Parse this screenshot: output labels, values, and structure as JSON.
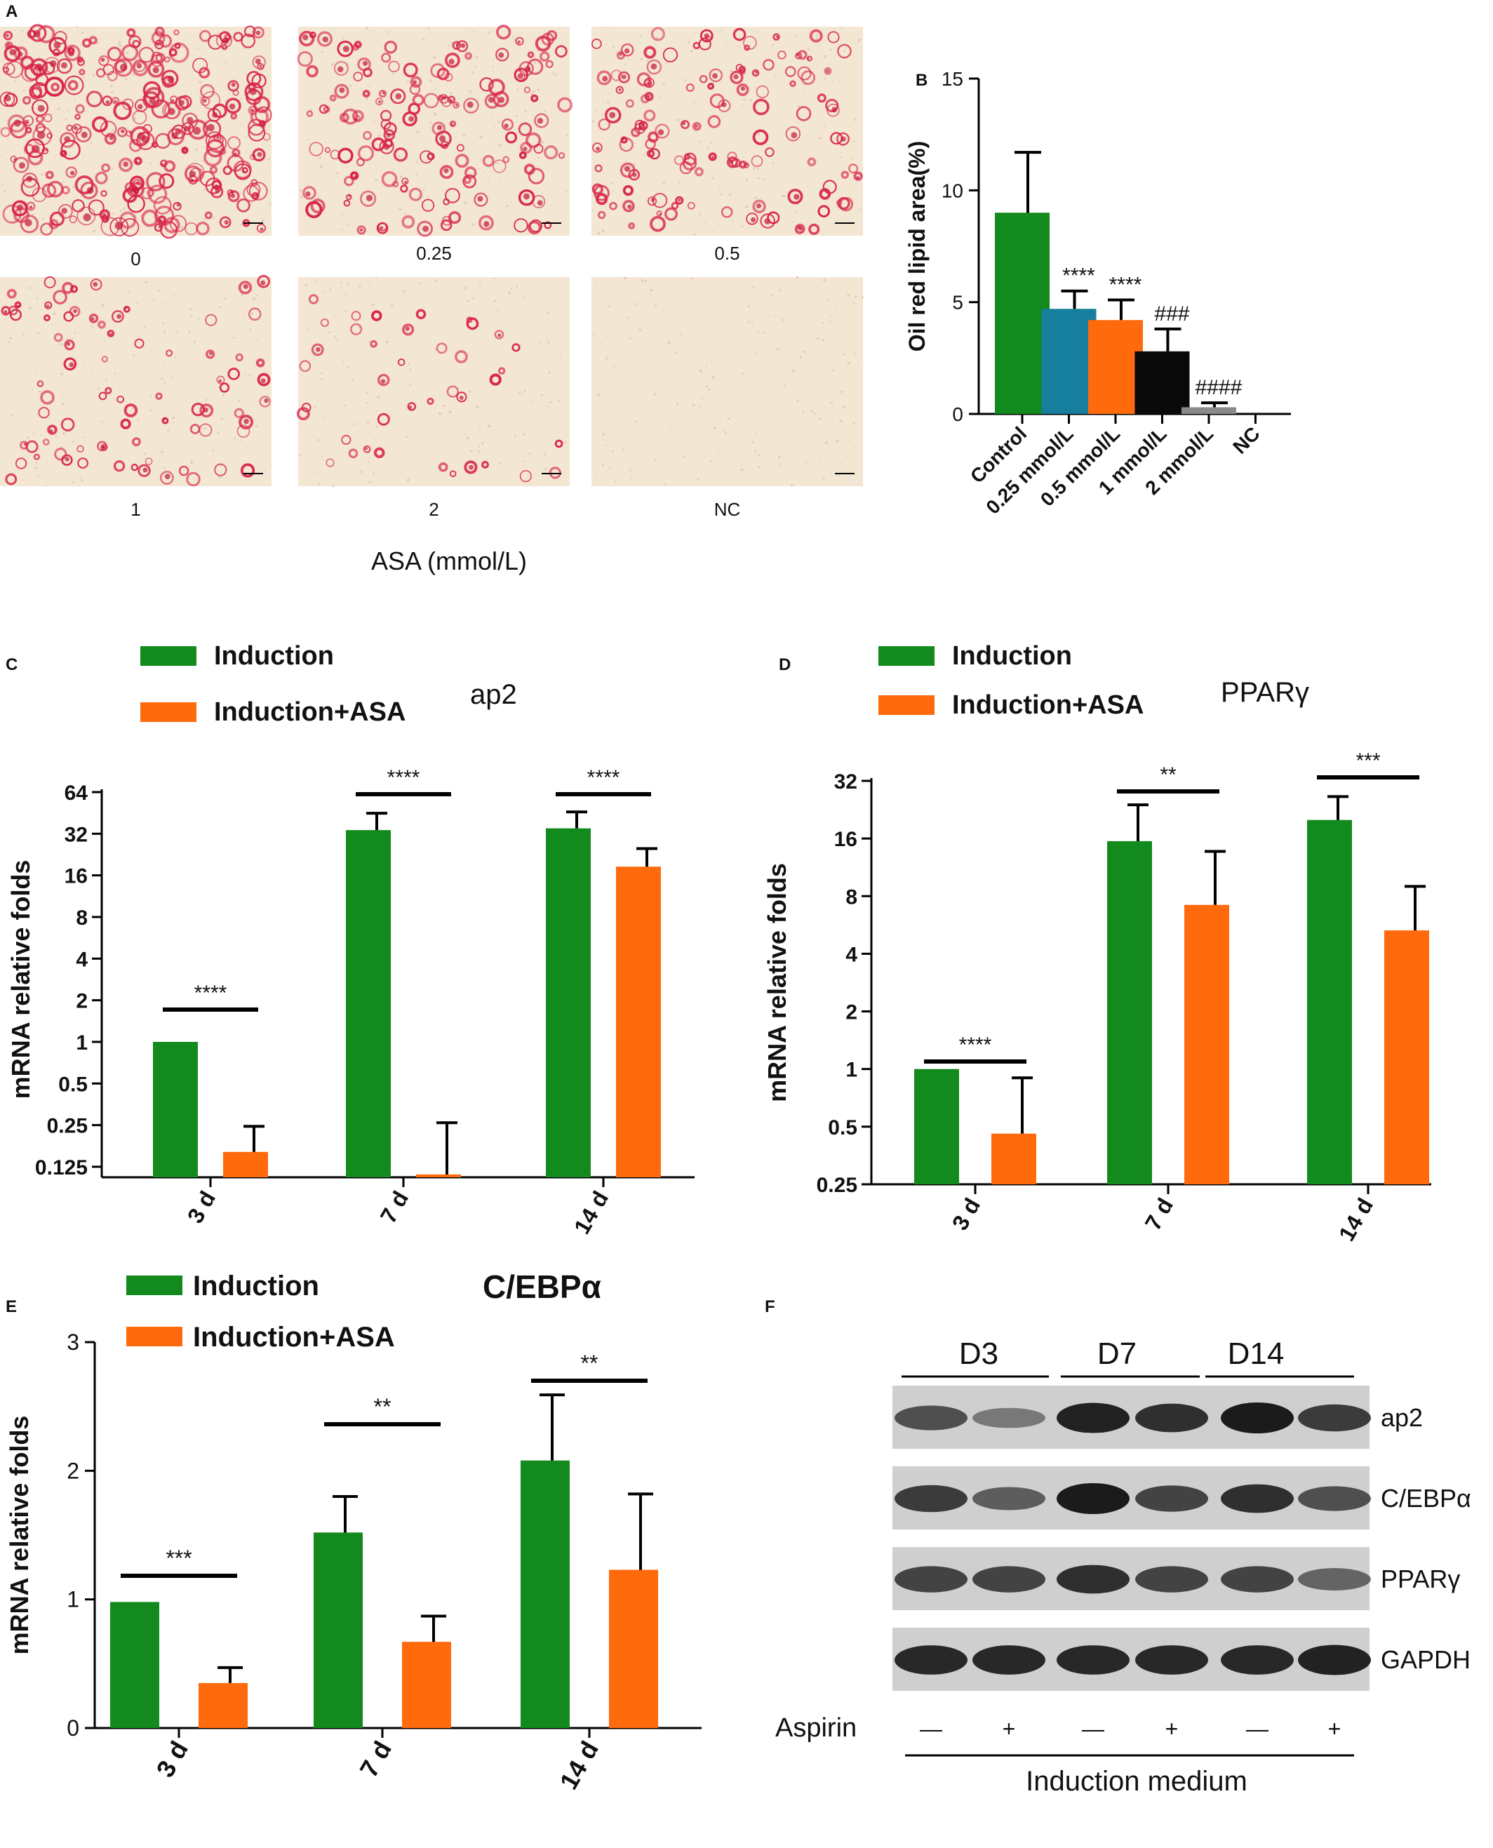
{
  "panel_letters": {
    "a": "A",
    "b": "B",
    "c": "C",
    "d": "D",
    "e": "E",
    "f": "F"
  },
  "micrographs": {
    "xlabel": "ASA (mmol/L)",
    "panels": [
      {
        "label": "0",
        "density": 1.0
      },
      {
        "label": "0.25",
        "density": 0.55
      },
      {
        "label": "0.5",
        "density": 0.5
      },
      {
        "label": "1",
        "density": 0.3
      },
      {
        "label": "2",
        "density": 0.15
      },
      {
        "label": "NC",
        "density": 0.0
      }
    ]
  },
  "colors": {
    "green": "#138a1e",
    "orange": "#ff6a0d",
    "teal": "#167f9e",
    "black": "#0a0a0a",
    "gray": "#8a8a8a"
  },
  "chart_data": [
    {
      "id": "B",
      "type": "bar",
      "title": "",
      "ylabel": "Oil red lipid area(%)",
      "ylim": [
        0,
        15
      ],
      "yticks": [
        "0",
        "5",
        "10",
        "15"
      ],
      "categories": [
        "Control",
        "0.25 mmol/L",
        "0.5 mmol/L",
        "1 mmol/L",
        "2 mmol/L",
        "NC"
      ],
      "values": [
        9.0,
        4.7,
        4.2,
        2.8,
        0.3,
        0.0
      ],
      "errors": [
        2.7,
        0.8,
        0.9,
        1.0,
        0.2,
        0.0
      ],
      "annotations": [
        "",
        "****",
        "****",
        "###",
        "####",
        ""
      ],
      "bar_colors": [
        "#138a1e",
        "#167f9e",
        "#ff6a0d",
        "#0a0a0a",
        "#8a8a8a",
        "#ffffff"
      ]
    },
    {
      "id": "C",
      "type": "bar",
      "title": "ap2",
      "ylabel": "mRNA relative folds",
      "yscale": "log2",
      "yticks": [
        "0.125",
        "0.25",
        "0.5",
        "1",
        "2",
        "4",
        "8",
        "16",
        "32",
        "64"
      ],
      "categories": [
        "3 d",
        "7 d",
        "14 d"
      ],
      "series": [
        {
          "name": "Induction",
          "values": [
            1.0,
            34,
            35
          ],
          "errors": [
            0,
            11,
            11
          ]
        },
        {
          "name": "Induction+ASA",
          "values": [
            0.16,
            0.11,
            18.5
          ],
          "errors": [
            0.085,
            0.15,
            6.5
          ]
        }
      ],
      "significance": [
        "****",
        "****",
        "****"
      ]
    },
    {
      "id": "D",
      "type": "bar",
      "title": "PPARγ",
      "ylabel": "mRNA relative folds",
      "yscale": "log2",
      "yticks": [
        "0.25",
        "0.5",
        "1",
        "2",
        "4",
        "8",
        "16",
        "32"
      ],
      "categories": [
        "3 d",
        "7 d",
        "14 d"
      ],
      "series": [
        {
          "name": "Induction",
          "values": [
            1.0,
            15.5,
            20
          ],
          "errors": [
            0,
            8.5,
            6.5
          ]
        },
        {
          "name": "Induction+ASA",
          "values": [
            0.46,
            7.2,
            5.3
          ],
          "errors": [
            0.44,
            6.5,
            3.7
          ]
        }
      ],
      "significance": [
        "****",
        "**",
        "***"
      ]
    },
    {
      "id": "E",
      "type": "bar",
      "title": "C/EBPα",
      "ylabel": "mRNA relative folds",
      "ylim": [
        0,
        3
      ],
      "yticks": [
        "0",
        "1",
        "2",
        "3"
      ],
      "categories": [
        "3 d",
        "7 d",
        "14 d"
      ],
      "series": [
        {
          "name": "Induction",
          "values": [
            0.98,
            1.52,
            2.08
          ],
          "errors": [
            0,
            0.28,
            0.51
          ]
        },
        {
          "name": "Induction+ASA",
          "values": [
            0.35,
            0.67,
            1.23
          ],
          "errors": [
            0.12,
            0.2,
            0.59
          ]
        }
      ],
      "significance": [
        "***",
        "**",
        "**"
      ]
    }
  ],
  "western": {
    "groups": [
      "D3",
      "D7",
      "D14"
    ],
    "rows": [
      {
        "label": "ap2",
        "intensity": [
          0.6,
          0.3,
          0.95,
          0.85,
          1.0,
          0.75
        ]
      },
      {
        "label": "C/EBPα",
        "intensity": [
          0.75,
          0.5,
          1.0,
          0.7,
          0.85,
          0.6
        ]
      },
      {
        "label": "PPARγ",
        "intensity": [
          0.7,
          0.7,
          0.85,
          0.7,
          0.7,
          0.45
        ]
      },
      {
        "label": "GAPDH",
        "intensity": [
          0.9,
          0.9,
          0.9,
          0.9,
          0.9,
          0.95
        ]
      }
    ],
    "treatment_label": "Aspirin",
    "treatment": [
      "—",
      "+",
      "—",
      "+",
      "—",
      "+"
    ],
    "footer": "Induction medium"
  }
}
